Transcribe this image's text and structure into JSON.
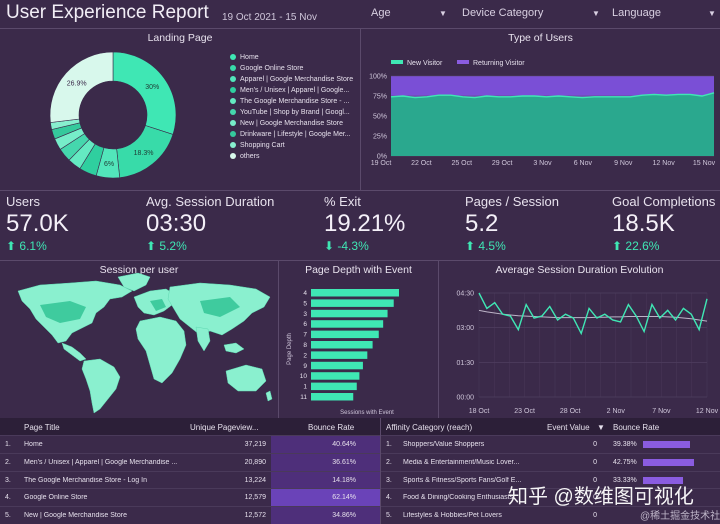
{
  "header": {
    "title": "User Experience Report",
    "date_range": "19 Oct 2021 - 15 Nov",
    "filters": [
      "Age",
      "Device Category",
      "Language"
    ]
  },
  "colors": {
    "accent": "#3fe7b4",
    "purple": "#7b4fd3",
    "bg": "#3b2a4a"
  },
  "landing_page": {
    "title": "Landing Page",
    "slices": [
      {
        "label": "Home",
        "value": 30.0,
        "pct_label": "30%"
      },
      {
        "label": "Google Online Store",
        "value": 18.3,
        "pct_label": "18.3%"
      },
      {
        "label": "Apparel | Google Merchandise Store",
        "value": 6.0,
        "pct_label": "6%"
      },
      {
        "label": "Men's / Unisex | Apparel | Google...",
        "value": 4.5,
        "pct_label": ""
      },
      {
        "label": "The Google Merchandise Store - ...",
        "value": 3.5,
        "pct_label": ""
      },
      {
        "label": "YouTube | Shop by Brand | Googl...",
        "value": 3.5,
        "pct_label": ""
      },
      {
        "label": "New | Google Merchandise Store",
        "value": 3.0,
        "pct_label": ""
      },
      {
        "label": "Drinkware | Lifestyle | Google Mer...",
        "value": 2.5,
        "pct_label": ""
      },
      {
        "label": "Shopping Cart",
        "value": 1.8,
        "pct_label": ""
      },
      {
        "label": "others",
        "value": 26.9,
        "pct_label": "26.9%"
      }
    ],
    "slice_colors": [
      "#3fe7b4",
      "#38dba9",
      "#52e6bb",
      "#2fcf9f",
      "#64eac2",
      "#45d7ad",
      "#76edc9",
      "#35c99c",
      "#88efcf",
      "#d8f8ec"
    ]
  },
  "type_of_users": {
    "title": "Type of Users",
    "legend": [
      "New Visitor",
      "Returning Visitor"
    ],
    "y_ticks": [
      "100%",
      "75%",
      "50%",
      "25%",
      "0%"
    ],
    "x_ticks": [
      "19 Oct",
      "22 Oct",
      "25 Oct",
      "29 Oct",
      "3 Nov",
      "6 Nov",
      "9 Nov",
      "12 Nov",
      "15 Nov"
    ],
    "new_visitor_pct": [
      74,
      75,
      73,
      74,
      76,
      76,
      74,
      73,
      75,
      74,
      74,
      75,
      75,
      74,
      75,
      74,
      73,
      74,
      74,
      74,
      74,
      76,
      77,
      76,
      77,
      77,
      75,
      79
    ]
  },
  "kpis": [
    {
      "label": "Users",
      "value": "57.0K",
      "delta": "⬆ 6.1%"
    },
    {
      "label": "Avg. Session Duration",
      "value": "03:30",
      "delta": "⬆ 5.2%"
    },
    {
      "label": "% Exit",
      "value": "19.21%",
      "delta": "⬇ -4.3%"
    },
    {
      "label": "Pages / Session",
      "value": "5.2",
      "delta": "⬆ 4.5%"
    },
    {
      "label": "Goal Completions",
      "value": "18.5K",
      "delta": "⬆ 22.6%"
    }
  ],
  "session_map": {
    "title": "Session per user"
  },
  "page_depth": {
    "title": "Page Depth with Event",
    "y_label": "Page Depth",
    "x_label": "Sessions with Event",
    "categories": [
      "4",
      "5",
      "3",
      "6",
      "7",
      "8",
      "2",
      "9",
      "10",
      "1",
      "11"
    ],
    "values": [
      100,
      94,
      87,
      82,
      77,
      70,
      64,
      59,
      55,
      52,
      48
    ]
  },
  "avg_session": {
    "title": "Average Session Duration Evolution",
    "y_ticks": [
      "04:30",
      "03:00",
      "01:30",
      "00:00"
    ],
    "x_ticks": [
      "18 Oct",
      "23 Oct",
      "28 Oct",
      "2 Nov",
      "7 Nov",
      "12 Nov"
    ],
    "values_sec": [
      270,
      230,
      245,
      215,
      210,
      175,
      240,
      205,
      210,
      235,
      200,
      215,
      205,
      165,
      230,
      205,
      215,
      200,
      195,
      240,
      210,
      170,
      240,
      205,
      225,
      200,
      230,
      215,
      175,
      255
    ],
    "trend_sec": [
      225,
      221,
      218,
      215,
      213,
      211,
      210,
      209,
      208,
      207,
      206,
      206,
      206,
      206,
      206,
      207,
      207,
      208,
      208,
      209,
      209,
      209,
      209,
      209,
      208,
      207,
      205,
      203,
      200,
      197
    ]
  },
  "pages_table": {
    "headers": [
      "Page Title",
      "Unique Pageview...",
      "Bounce Rate"
    ],
    "rows": [
      {
        "n": "1.",
        "title": "Home",
        "views": "37,219",
        "bounce": "40.64%",
        "frac": 0.406
      },
      {
        "n": "2.",
        "title": "Men's / Unisex | Apparel | Google Merchandise ...",
        "views": "20,890",
        "bounce": "36.61%",
        "frac": 0.366
      },
      {
        "n": "3.",
        "title": "The Google Merchandise Store - Log In",
        "views": "13,224",
        "bounce": "14.18%",
        "frac": 0.142
      },
      {
        "n": "4.",
        "title": "Google Online Store",
        "views": "12,579",
        "bounce": "62.14%",
        "frac": 0.621
      },
      {
        "n": "5.",
        "title": "New | Google Merchandise Store",
        "views": "12,572",
        "bounce": "34.86%",
        "frac": 0.349
      }
    ]
  },
  "affinity_table": {
    "headers": [
      "Affinity Category (reach)",
      "Event Value",
      "Bounce Rate"
    ],
    "rows": [
      {
        "n": "1.",
        "title": "Shoppers/Value Shoppers",
        "value": "0",
        "bounce": "39.38%",
        "frac": 0.394
      },
      {
        "n": "2.",
        "title": "Media & Entertainment/Music Lover...",
        "value": "0",
        "bounce": "42.75%",
        "frac": 0.428
      },
      {
        "n": "3.",
        "title": "Sports & Fitness/Sports Fans/Golf E...",
        "value": "0",
        "bounce": "33.33%",
        "frac": 0.333
      },
      {
        "n": "4.",
        "title": "Food & Dining/Cooking Enthusiasts",
        "value": "0",
        "bounce": "",
        "frac": 0.0
      },
      {
        "n": "5.",
        "title": "Lifestyles & Hobbies/Pet Lovers",
        "value": "0",
        "bounce": "",
        "frac": 0.0
      }
    ]
  },
  "watermark": {
    "text": "知乎 @数维图可视化",
    "sub": "@稀土掘金技术社区"
  }
}
